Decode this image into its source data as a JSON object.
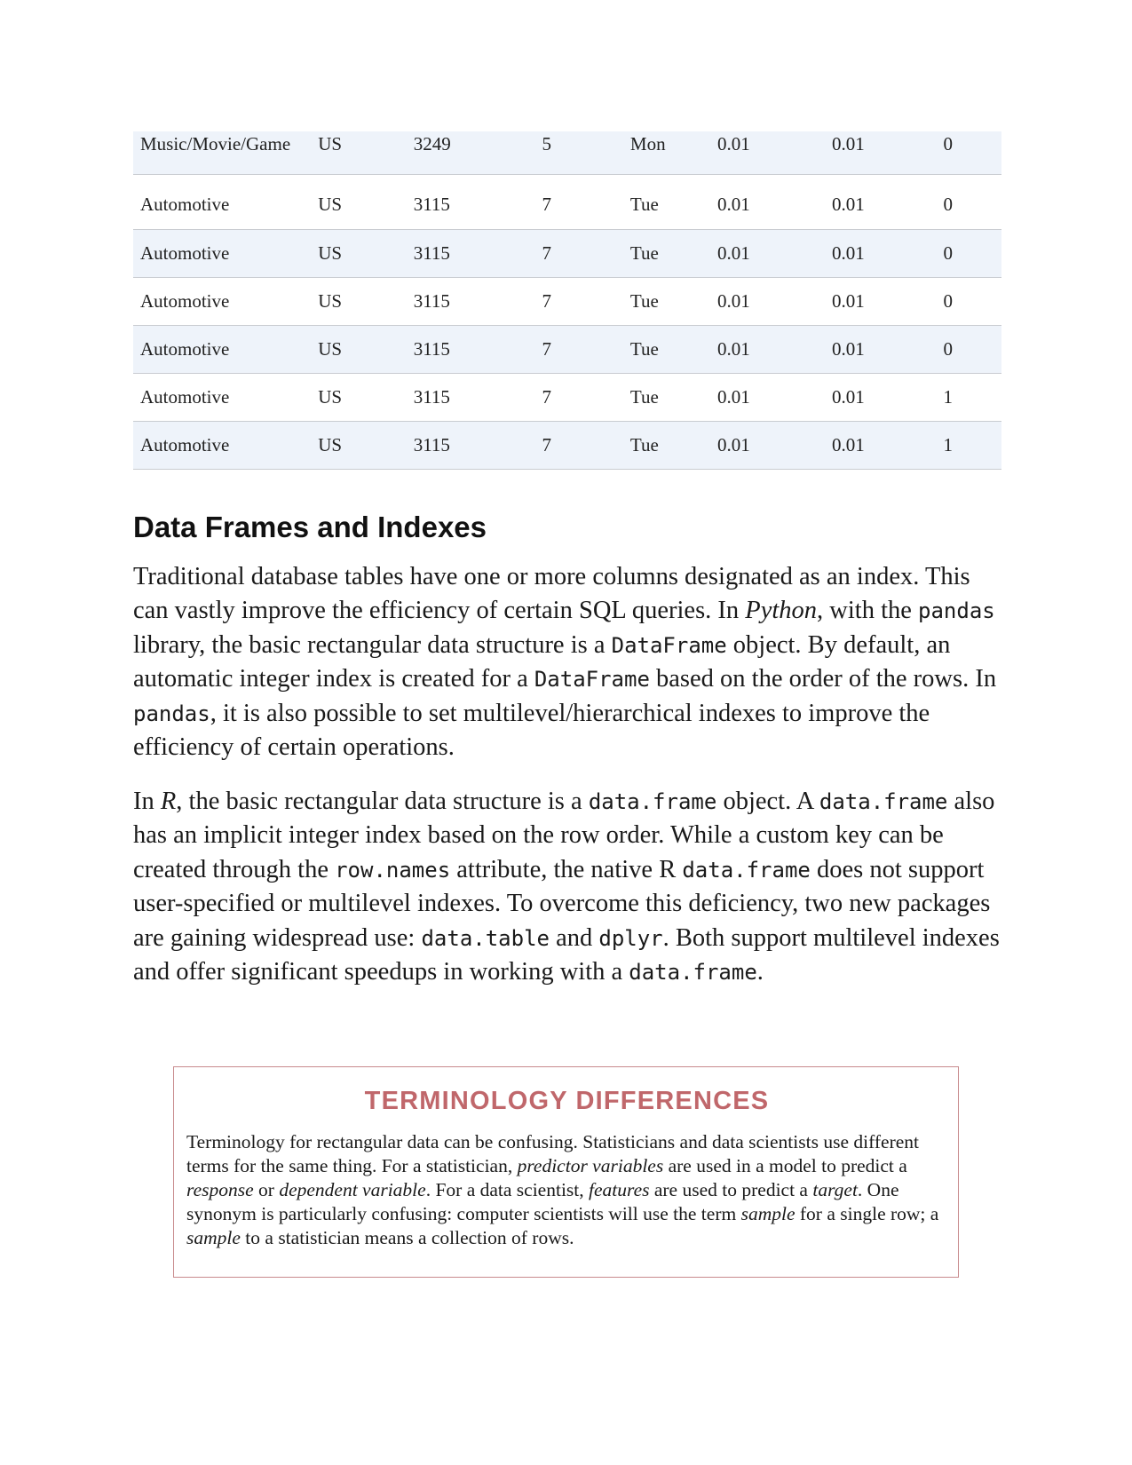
{
  "table": {
    "rows": [
      [
        "Music/Movie/Game",
        "US",
        "3249",
        "5",
        "Mon",
        "0.01",
        "0.01",
        "0"
      ],
      [
        "Automotive",
        "US",
        "3115",
        "7",
        "Tue",
        "0.01",
        "0.01",
        "0"
      ],
      [
        "Automotive",
        "US",
        "3115",
        "7",
        "Tue",
        "0.01",
        "0.01",
        "0"
      ],
      [
        "Automotive",
        "US",
        "3115",
        "7",
        "Tue",
        "0.01",
        "0.01",
        "0"
      ],
      [
        "Automotive",
        "US",
        "3115",
        "7",
        "Tue",
        "0.01",
        "0.01",
        "0"
      ],
      [
        "Automotive",
        "US",
        "3115",
        "7",
        "Tue",
        "0.01",
        "0.01",
        "1"
      ],
      [
        "Automotive",
        "US",
        "3115",
        "7",
        "Tue",
        "0.01",
        "0.01",
        "1"
      ]
    ]
  },
  "section": {
    "heading": "Data Frames and Indexes",
    "para1": {
      "t1": "Traditional database tables have one or more columns designated as an index. This can vastly improve the efficiency of certain SQL queries. In ",
      "python": "Python",
      "t2": ", with the ",
      "pandas1": "pandas",
      "t3": " library, the basic rectangular data structure is a ",
      "dataframe1": "DataFrame",
      "t4": " object. By default, an automatic integer index is created for a ",
      "dataframe2": "DataFrame",
      "t5": " based on the order of the rows. In ",
      "pandas2": "pandas",
      "t6": ", it is also possible to set multilevel/hierarchical indexes to improve the efficiency of certain operations."
    },
    "para2": {
      "t1": "In ",
      "r": "R",
      "t2": ", the basic rectangular data structure is a ",
      "code1": "data.frame",
      "t3": " object. A ",
      "code2": "data.frame",
      "t4": " also has an implicit integer index based on the row order. While a custom key can be created through the ",
      "code3": "row.names",
      "t5": " attribute, the native R ",
      "code4": "data.frame",
      "t6": " does not support user-specified or multilevel indexes. To overcome this deficiency, two new packages are gaining widespread use: ",
      "code5": "data.table",
      "t7": " and ",
      "code6": "dplyr",
      "t8": ". Both support multilevel indexes and offer significant speedups in working with a ",
      "code7": "data.frame",
      "t9": "."
    }
  },
  "sidebar": {
    "title": "TERMINOLOGY DIFFERENCES",
    "t1": "Terminology for rectangular data can be confusing. Statisticians and data scientists use different terms for the same thing. For a statistician, ",
    "e1": "predictor variables",
    "t2": " are used in a model to predict a ",
    "e2": "response",
    "t3": " or ",
    "e3": "dependent variable",
    "t4": ". For a data scientist, ",
    "e4": "features",
    "t5": " are used to predict a ",
    "e5": "target",
    "t6": ". One synonym is particularly confusing: computer scientists will use the term ",
    "e6": "sample",
    "t7": " for a single row; a ",
    "e7": "sample",
    "t8": " to a statistician means a collection of rows."
  }
}
